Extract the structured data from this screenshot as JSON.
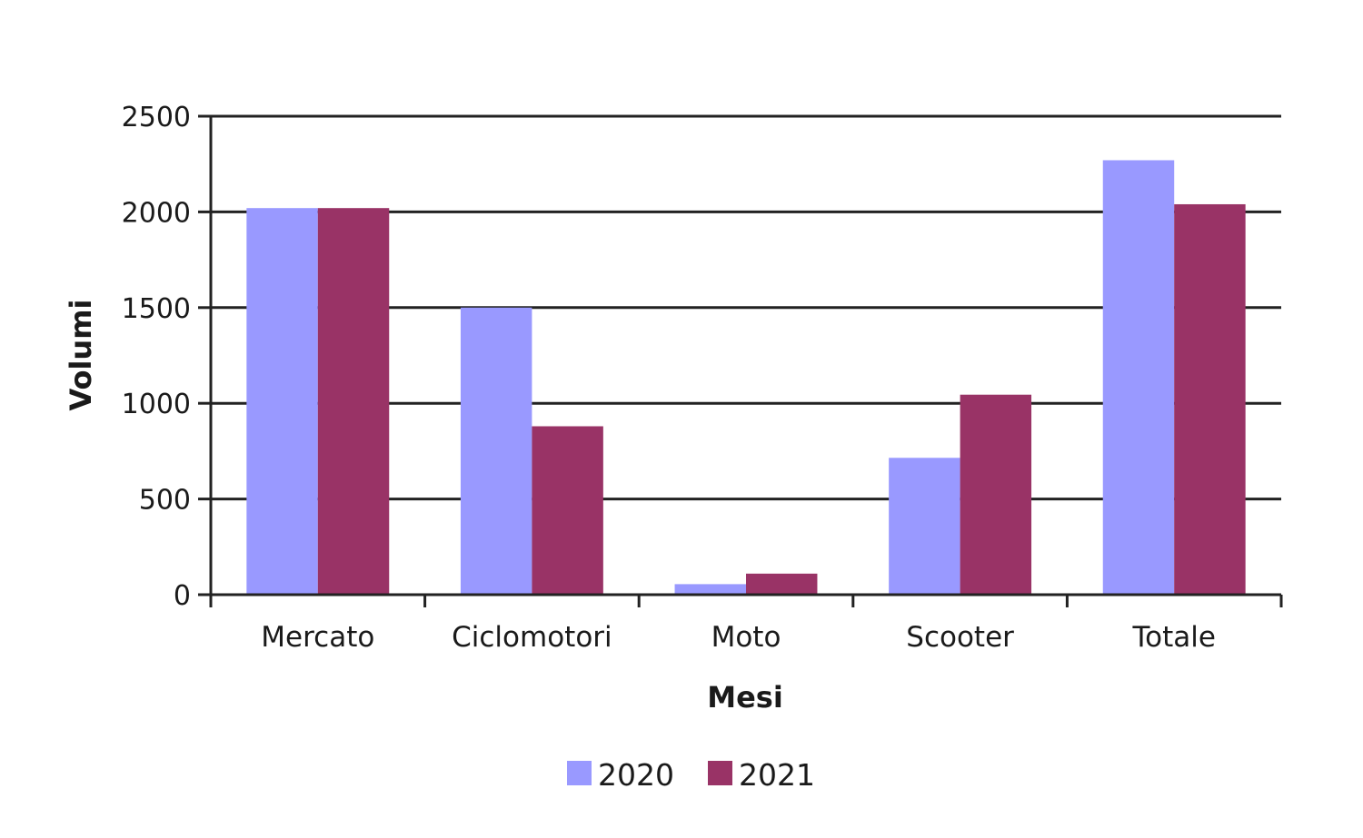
{
  "chart_data": {
    "type": "bar",
    "xlabel": "Mesi",
    "ylabel": "Volumi",
    "categories": [
      "Mercato",
      "Ciclomotori",
      "Moto",
      "Scooter",
      "Totale"
    ],
    "series": [
      {
        "name": "2020",
        "color": "#9999ff",
        "values": [
          2020,
          1500,
          55,
          715,
          2270
        ]
      },
      {
        "name": "2021",
        "color": "#993366",
        "values": [
          2020,
          880,
          110,
          1045,
          2040
        ]
      }
    ],
    "ylim": [
      0,
      2500
    ],
    "yticks": [
      0,
      500,
      1000,
      1500,
      2000,
      2500
    ],
    "grid": true,
    "legend_position": "bottom-center"
  }
}
